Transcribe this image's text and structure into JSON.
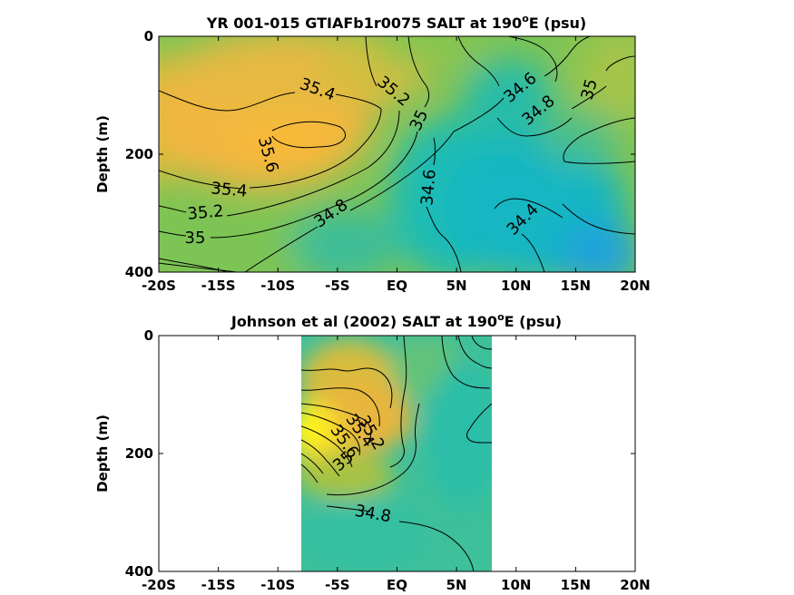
{
  "chart_data": [
    {
      "type": "heatmap",
      "title_main": "YR 001-015 GTIAFb1r0075 SALT at 190",
      "title_sup": "o",
      "title_end": "E (psu)",
      "ylabel": "Depth (m)",
      "xlabel": "",
      "x_ticks": [
        "-20S",
        "-15S",
        "-10S",
        "-5S",
        "EQ",
        "5N",
        "10N",
        "15N",
        "20N"
      ],
      "y_ticks": [
        "0",
        "200",
        "400"
      ],
      "xlim": [
        -20,
        20
      ],
      "ylim": [
        0,
        400
      ],
      "y_reversed": true,
      "data_extent_lat": [
        -20,
        20
      ],
      "colormap": "parula",
      "color_range": [
        33.8,
        36.0
      ],
      "contour_levels": [
        "35.6",
        "35.4",
        "35.2",
        "35",
        "34.8",
        "34.6",
        "34.4",
        "35.4",
        "35.2",
        "34.6",
        "35",
        "34.8",
        "35.4",
        "35.2",
        "35"
      ]
    },
    {
      "type": "heatmap",
      "title_main": "Johnson et al (2002) SALT at 190",
      "title_sup": "o",
      "title_end": "E (psu)",
      "ylabel": "Depth (m)",
      "xlabel": "",
      "x_ticks": [
        "-20S",
        "-15S",
        "-10S",
        "-5S",
        "EQ",
        "5N",
        "10N",
        "15N",
        "20N"
      ],
      "y_ticks": [
        "0",
        "200",
        "400"
      ],
      "xlim": [
        -20,
        20
      ],
      "ylim": [
        0,
        400
      ],
      "y_reversed": true,
      "data_extent_lat": [
        -8,
        8
      ],
      "colormap": "parula",
      "color_range": [
        33.8,
        36.0
      ],
      "contour_levels": [
        "35.6",
        "35.4",
        "35.2",
        "35",
        "34.8"
      ]
    }
  ],
  "colors": {
    "salty": "#f6e020",
    "orange": "#f0b83c",
    "mid_green": "#8cc24c",
    "teal": "#1dbcb6",
    "fresh_blue": "#1da0dc",
    "contour": "#000000"
  }
}
